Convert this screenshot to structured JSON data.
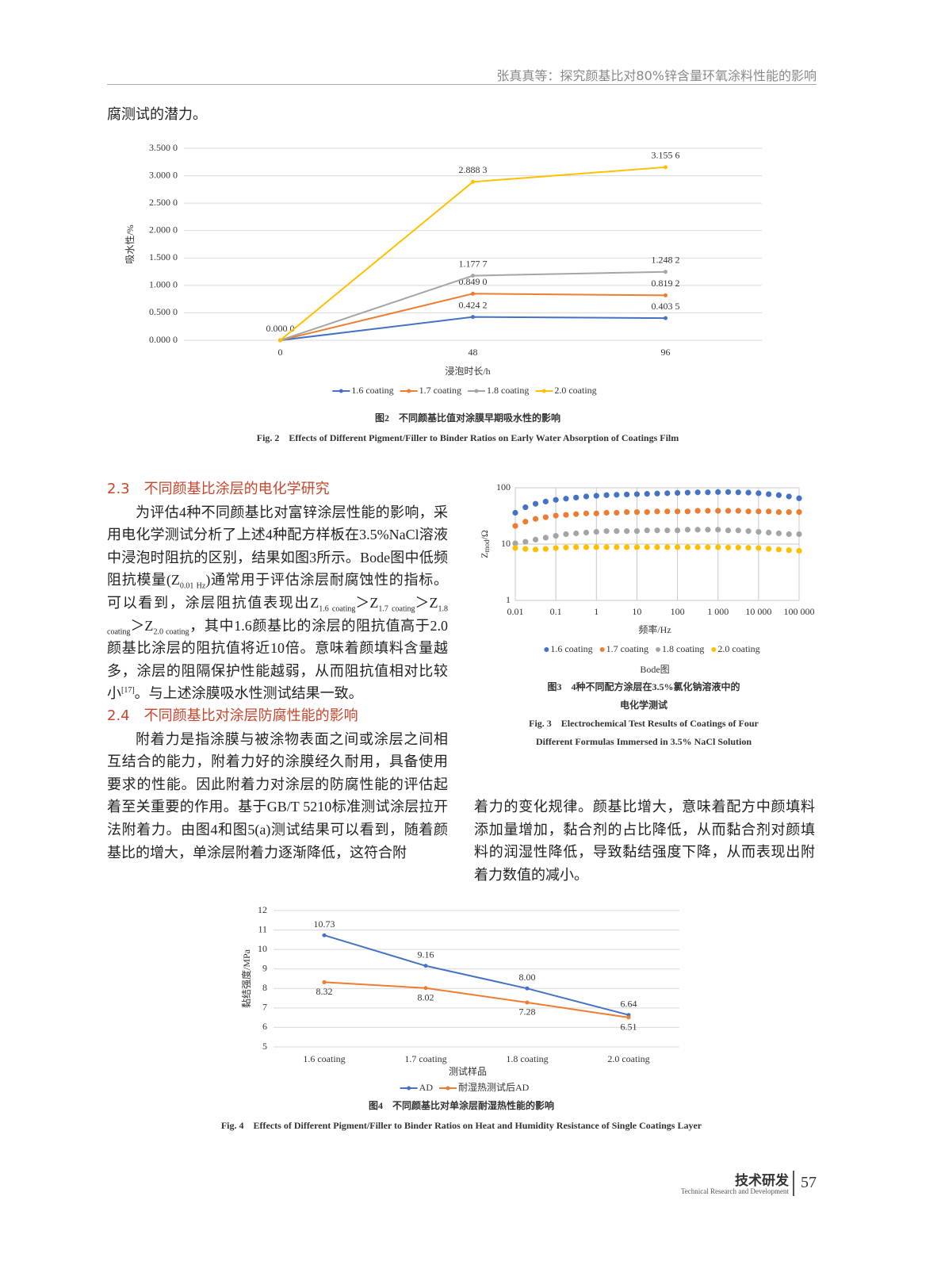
{
  "header": {
    "title": "张真真等：探究颜基比对80%锌含量环氧涂料性能的影响"
  },
  "body": {
    "lead": "腐测试的潜力。",
    "sections": [
      {
        "heading": "2.3　不同颜基比涂层的电化学研究",
        "paragraph": [
          "为评估4种不同颜基比对富锌涂层性能的影响，采用电化学测试分析了上述4种配方样板在3.5%NaCl溶液中浸泡时阻抗的区别，结果如图3所示。Bode图中低频阻抗模量(Z",
          {
            "sub": "0.01 Hz"
          },
          ")通常用于评估涂层耐腐蚀性的指标。可以看到，涂层阻抗值表现出Z",
          {
            "sub": "1.6 coating"
          },
          "＞Z",
          {
            "sub": "1.7 coating"
          },
          "＞Z",
          {
            "sub": "1.8 coating"
          },
          "＞Z",
          {
            "sub": "2.0 coating"
          },
          "，其中1.6颜基比的涂层的阻抗值高于2.0颜基比涂层的阻抗值将近10倍。意味着颜填料含量越多，涂层的阻隔保护性能越弱，从而阻抗值相对比较小",
          {
            "sup": "[17]"
          },
          "。与上述涂膜吸水性测试结果一致。"
        ]
      },
      {
        "heading": "2.4　不同颜基比对涂层防腐性能的影响",
        "paragraph": [
          "附着力是指涂膜与被涂物表面之间或涂层之间相互结合的能力，附着力好的涂膜经久耐用，具备使用要求的性能。因此附着力对涂层的防腐性能的评估起着至关重要的作用。基于GB/T 5210标准测试涂层拉开法附着力。由图4和图5(a)测试结果可以看到，随着颜基比的增大，单涂层附着力逐渐降低，这符合附"
        ]
      }
    ],
    "continuation": "着力的变化规律。颜基比增大，意味着配方中颜填料添加量增加，黏合剂的占比降低，从而黏合剂对颜填料的润湿性降低，导致黏结强度下降，从而表现出附着力数值的减小。"
  },
  "chart_data": [
    {
      "type": "line",
      "y_label": [
        "吸水性/%"
      ],
      "x_label": "浸泡时长/h",
      "categories": [
        "0",
        "48",
        "96"
      ],
      "series": [
        {
          "name": "1.6 coating",
          "color": "#4472c4",
          "values": [
            0,
            0.4242,
            0.4035
          ],
          "value_labels": [
            "0.000 0",
            "0.424 2",
            "0.403 5"
          ]
        },
        {
          "name": "1.7 coating",
          "color": "#ed7d31",
          "values": [
            0,
            0.849,
            0.8192
          ],
          "value_labels": [
            null,
            "0.849 0",
            "0.819 2"
          ]
        },
        {
          "name": "1.8 coating",
          "color": "#a5a5a5",
          "values": [
            0,
            1.1777,
            1.2482
          ],
          "value_labels": [
            null,
            "1.177 7",
            "1.248 2"
          ]
        },
        {
          "name": "2.0 coating",
          "color": "#ffc000",
          "values": [
            0,
            2.8883,
            3.1556
          ],
          "value_labels": [
            null,
            "2.888 3",
            "3.155 6"
          ]
        }
      ],
      "ylim": [
        0,
        3.5
      ],
      "yticks": [
        {
          "value": 0,
          "label": "0.000 0"
        },
        {
          "value": 0.5,
          "label": "0.500 0"
        },
        {
          "value": 1,
          "label": "1.000 0"
        },
        {
          "value": 1.5,
          "label": "1.500 0"
        },
        {
          "value": 2,
          "label": "2.000 0"
        },
        {
          "value": 2.5,
          "label": "2.500 0"
        },
        {
          "value": 3,
          "label": "3.000 0"
        },
        {
          "value": 3.5,
          "label": "3.500 0"
        }
      ],
      "grid": true,
      "legend": "bottom",
      "caption_cn": [
        "图2　不同颜基比值对涂膜早期吸水性的影响"
      ],
      "caption_en": [
        "Fig. 2　Effects of Different Pigment/Filler to Binder Ratios on Early Water Absorption of Coatings Film"
      ]
    },
    {
      "type": "scatter",
      "subtitle": "Bode图",
      "y_label": [
        "Z",
        {
          "sub": "mod"
        },
        "/Ω"
      ],
      "x_label": "频率/Hz",
      "x": [
        0.01,
        0.0178,
        0.0316,
        0.0562,
        0.1,
        0.178,
        0.316,
        0.562,
        1,
        1.78,
        3.16,
        5.62,
        10,
        17.8,
        31.6,
        56.2,
        100,
        178,
        316,
        562,
        1000,
        1780,
        3160,
        5620,
        10000,
        17800,
        31600,
        56200,
        100000
      ],
      "series": [
        {
          "name": "1.6 coating",
          "color": "#4472c4",
          "values": [
            36,
            45,
            52,
            57,
            61,
            64,
            67,
            70,
            72,
            74,
            75,
            76,
            77,
            78,
            79,
            80,
            81,
            82,
            83,
            83,
            84,
            84,
            83,
            82,
            80,
            77,
            74,
            70,
            65
          ]
        },
        {
          "name": "1.7 coating",
          "color": "#ed7d31",
          "values": [
            21,
            25,
            28,
            30,
            32,
            33,
            34,
            35,
            35,
            36,
            36,
            37,
            37,
            37,
            38,
            38,
            38,
            38,
            39,
            39,
            39,
            39,
            39,
            38,
            38,
            38,
            37,
            37,
            37
          ]
        },
        {
          "name": "1.8 coating",
          "color": "#a5a5a5",
          "values": [
            10.3,
            11,
            12,
            13,
            14,
            15,
            15.5,
            16,
            16.5,
            17,
            17,
            17,
            17,
            17.5,
            17.5,
            17.5,
            17.5,
            18,
            18,
            18,
            18,
            17.5,
            17.5,
            17,
            16.5,
            16,
            15.5,
            15,
            15
          ]
        },
        {
          "name": "2.0 coating",
          "color": "#ffc000",
          "values": [
            8.5,
            8.2,
            8,
            8.2,
            8.5,
            8.7,
            8.8,
            8.8,
            8.8,
            8.8,
            8.8,
            8.8,
            8.8,
            8.8,
            8.8,
            8.8,
            8.8,
            8.8,
            8.8,
            8.8,
            8.8,
            8.7,
            8.7,
            8.6,
            8.5,
            8.2,
            8,
            7.8,
            7.6
          ]
        }
      ],
      "xlim": [
        0.01,
        100000
      ],
      "ylim": [
        1,
        100
      ],
      "log_x": true,
      "log_y": true,
      "xticks": [
        0.01,
        0.1,
        1,
        10,
        100,
        {
          "value": 1000,
          "label": "1 000"
        },
        {
          "value": 10000,
          "label": "10 000"
        },
        {
          "value": 100000,
          "label": "100 000"
        }
      ],
      "yticks": [
        1,
        10,
        100
      ],
      "grid": true,
      "legend": "bottom",
      "caption_cn": [
        "图3　4种不同配方涂层在3.5%氯化钠溶液中的",
        "电化学测试"
      ],
      "caption_en": [
        "Fig. 3　Electrochemical Test Results of Coatings of Four",
        "Different Formulas Immersed in 3.5% NaCl Solution"
      ]
    },
    {
      "type": "line",
      "y_label": [
        "黏结强度/MPa"
      ],
      "x_label": "测试样品",
      "categories": [
        "1.6 coating",
        "1.7 coating",
        "1.8 coating",
        "2.0 coating"
      ],
      "series": [
        {
          "name": "AD",
          "color": "#4472c4",
          "values": [
            10.73,
            9.16,
            8,
            6.64
          ],
          "value_labels": [
            "10.73",
            "9.16",
            "8.00",
            "6.64"
          ]
        },
        {
          "name": "耐湿热测试后AD",
          "color": "#ed7d31",
          "values": [
            8.32,
            8.02,
            7.28,
            6.51
          ],
          "value_labels": [
            "8.32",
            "8.02",
            "7.28",
            "6.51"
          ]
        }
      ],
      "ylim": [
        5,
        12
      ],
      "yticks": [
        5,
        6,
        7,
        8,
        9,
        10,
        11,
        12
      ],
      "grid": true,
      "legend": "bottom",
      "caption_cn": [
        "图4　不同颜基比对单涂层耐湿热性能的影响"
      ],
      "caption_en": [
        "Fig. 4　Effects of Different Pigment/Filler to Binder Ratios on Heat and Humidity Resistance of Single Coatings Layer"
      ]
    }
  ],
  "footer": {
    "section_cn": "技术研发",
    "section_en": "Technical Research and Development",
    "page": "57"
  }
}
